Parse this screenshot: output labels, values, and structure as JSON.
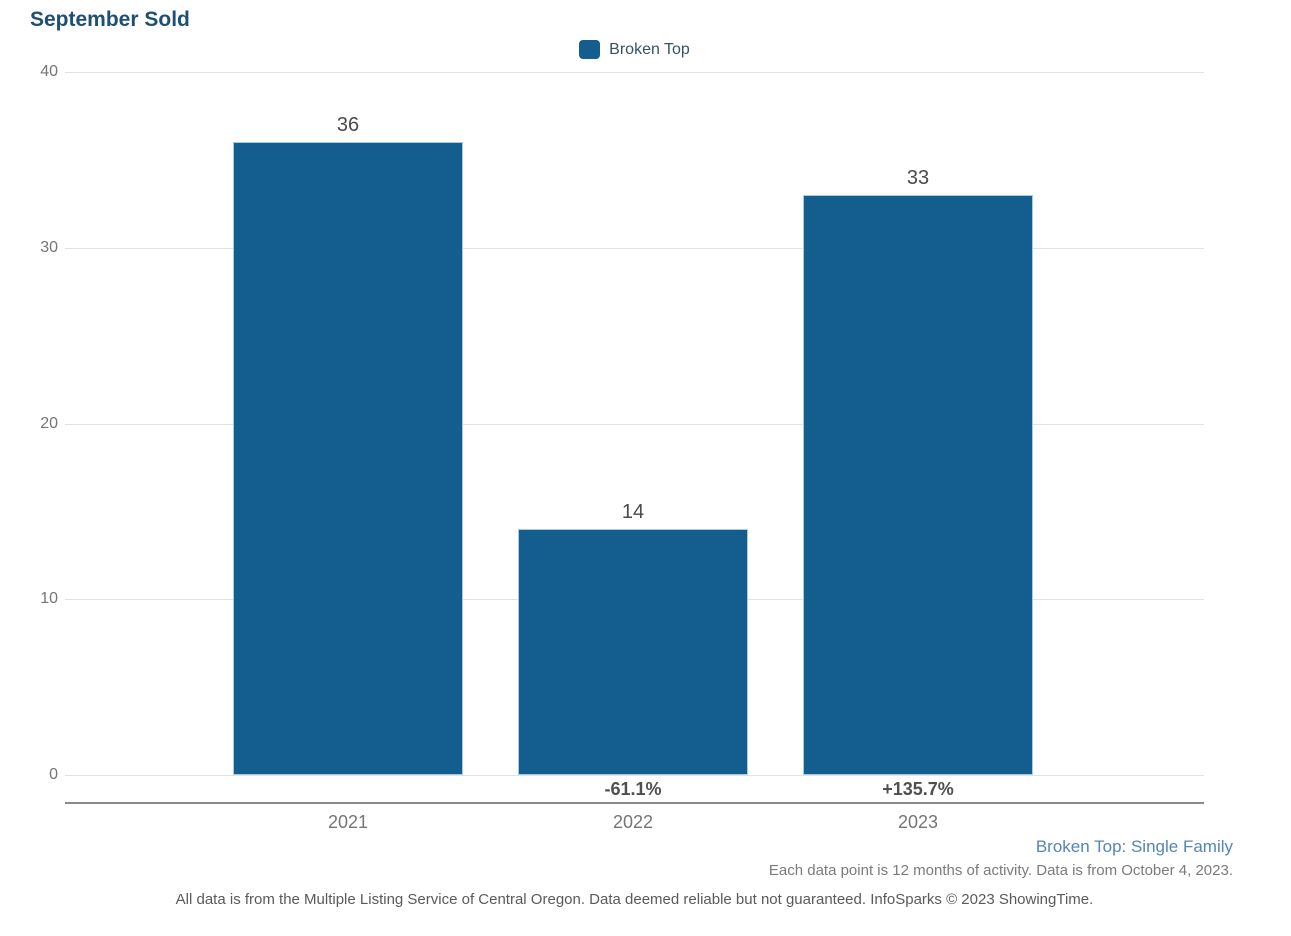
{
  "title": "September Sold",
  "legend": {
    "label": "Broken Top"
  },
  "colors": {
    "bar": "#135e8e",
    "bar_border": "#a9cbde",
    "title": "#1e5076",
    "grid": "#e2e2e2",
    "axis": "#8a8a8a",
    "tick": "#757575",
    "value_label": "#4a4a4a",
    "pct_label": "#4f4f4f",
    "annotation_blue": "#5585b5"
  },
  "chart_data": {
    "type": "bar",
    "categories": [
      "2021",
      "2022",
      "2023"
    ],
    "values": [
      36,
      14,
      33
    ],
    "pct_change": [
      "",
      "-61.1%",
      "+135.7%"
    ],
    "series": [
      {
        "name": "Broken Top",
        "values": [
          36,
          14,
          33
        ]
      }
    ],
    "title": "September Sold",
    "xlabel": "",
    "ylabel": "",
    "ylim": [
      0,
      40
    ],
    "yticks": [
      0,
      10,
      20,
      30,
      40
    ],
    "grid": true,
    "legend_position": "top-center"
  },
  "annotations": {
    "series_note": "Broken Top: Single Family",
    "data_note": "Each data point is 12 months of activity. Data is from October 4, 2023.",
    "footer": "All data is from the Multiple Listing Service of Central Oregon. Data deemed reliable but not guaranteed. InfoSparks © 2023 ShowingTime."
  }
}
